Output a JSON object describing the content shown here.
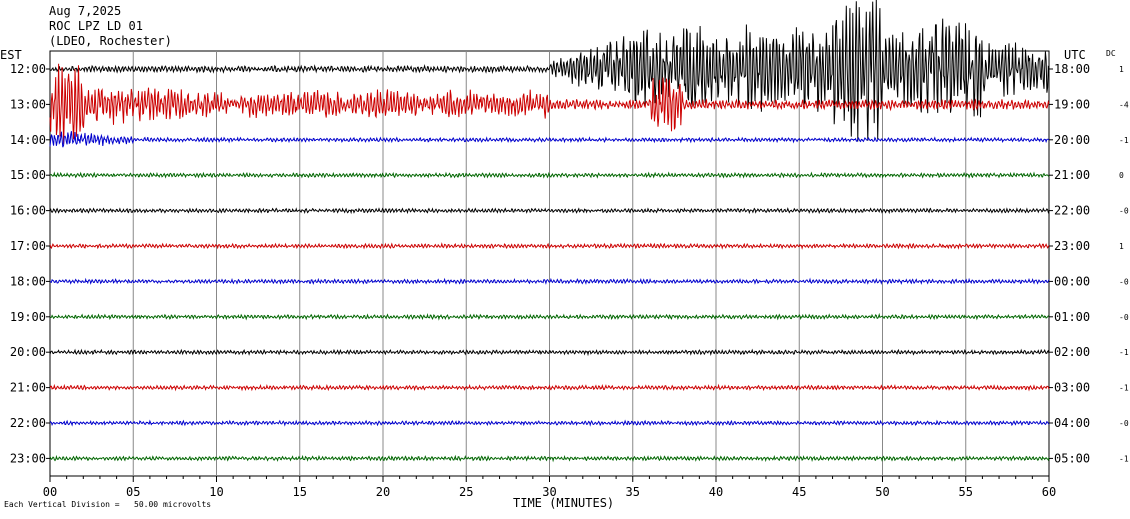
{
  "header": {
    "date": "Aug 7,2025",
    "station": "ROC LPZ LD 01",
    "network": "(LDEO, Rochester)"
  },
  "labels": {
    "left_tz": "EST",
    "right_tz": "UTC",
    "dc": "DC",
    "footnote": "Each Vertical Division =   50.00 microvolts"
  },
  "chart_data": {
    "type": "line",
    "xlabel": "TIME (MINUTES)",
    "xlim": [
      0,
      60
    ],
    "x_ticks": [
      "00",
      "05",
      "10",
      "15",
      "20",
      "25",
      "30",
      "35",
      "40",
      "45",
      "50",
      "55",
      "60"
    ],
    "rows": [
      {
        "est": "12:00",
        "utc": "18:00",
        "dc": "1",
        "color": "#000000",
        "activity": "quake_start"
      },
      {
        "est": "13:00",
        "utc": "19:00",
        "dc": "-4",
        "color": "#cc0000",
        "activity": "coda_high"
      },
      {
        "est": "14:00",
        "utc": "20:00",
        "dc": "-1",
        "color": "#0000cc",
        "activity": "coda_low"
      },
      {
        "est": "15:00",
        "utc": "21:00",
        "dc": "0",
        "color": "#006600",
        "activity": "quiet"
      },
      {
        "est": "16:00",
        "utc": "22:00",
        "dc": "-0",
        "color": "#000000",
        "activity": "quiet"
      },
      {
        "est": "17:00",
        "utc": "23:00",
        "dc": "1",
        "color": "#cc0000",
        "activity": "quiet"
      },
      {
        "est": "18:00",
        "utc": "00:00",
        "dc": "-0",
        "color": "#0000cc",
        "activity": "quiet"
      },
      {
        "est": "19:00",
        "utc": "01:00",
        "dc": "-0",
        "color": "#006600",
        "activity": "quiet"
      },
      {
        "est": "20:00",
        "utc": "02:00",
        "dc": "-1",
        "color": "#000000",
        "activity": "quiet"
      },
      {
        "est": "21:00",
        "utc": "03:00",
        "dc": "-1",
        "color": "#cc0000",
        "activity": "quiet"
      },
      {
        "est": "22:00",
        "utc": "04:00",
        "dc": "-0",
        "color": "#0000cc",
        "activity": "quiet"
      },
      {
        "est": "23:00",
        "utc": "05:00",
        "dc": "-1",
        "color": "#006600",
        "activity": "quiet"
      }
    ],
    "grid": true
  }
}
